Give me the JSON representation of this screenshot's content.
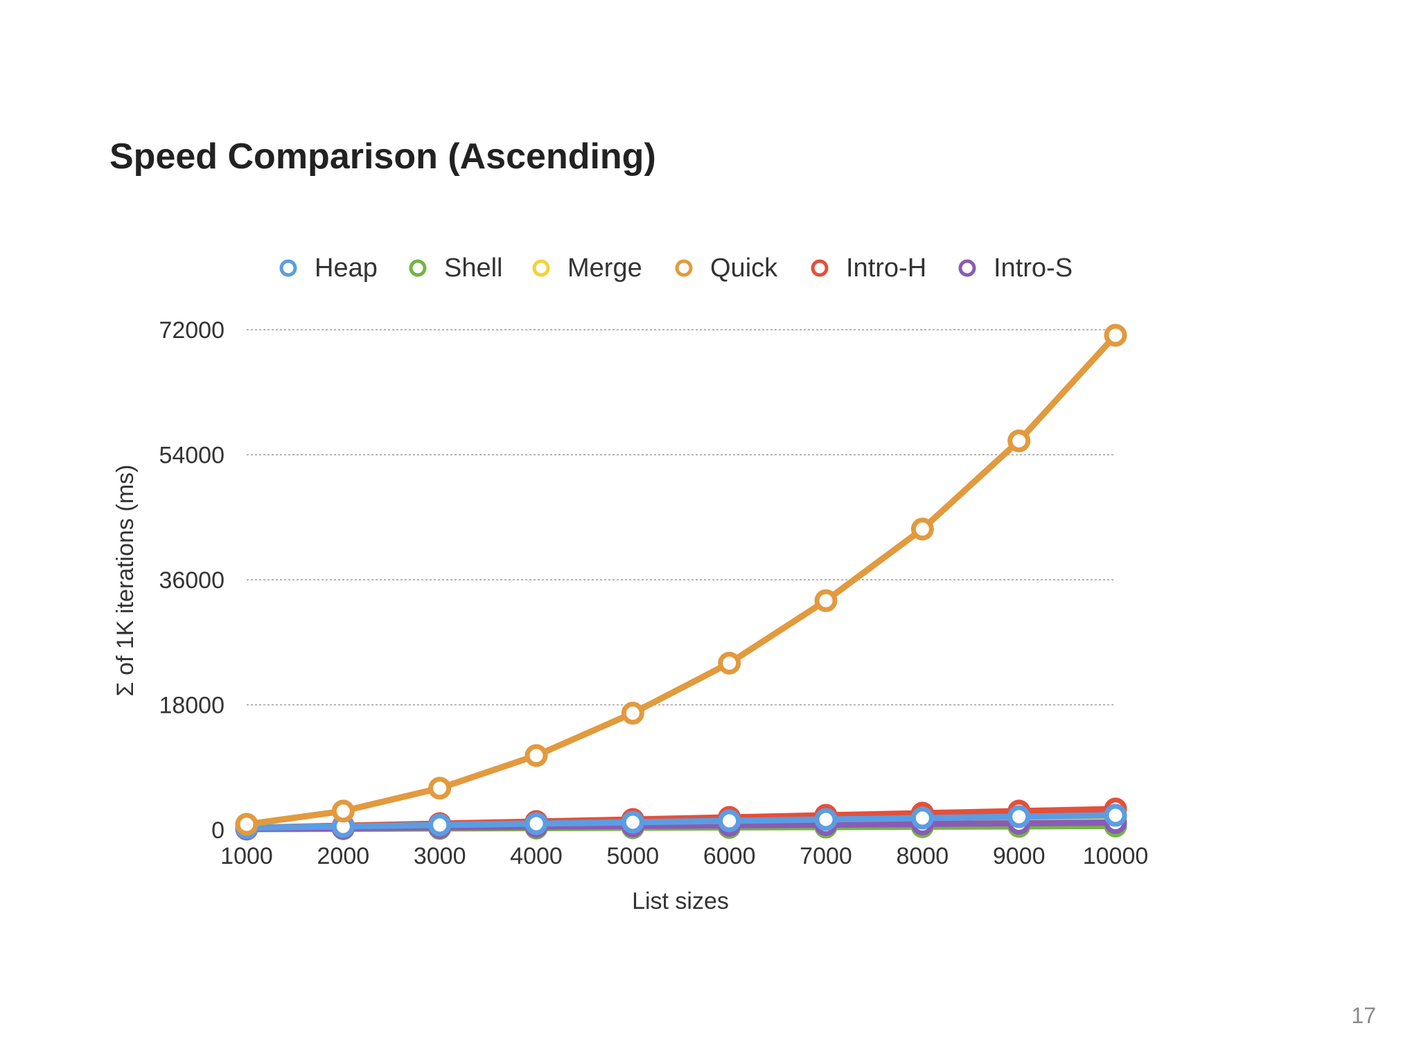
{
  "slide": {
    "title": "Speed Comparison (Ascending)",
    "page_number": "17"
  },
  "chart_data": {
    "type": "line",
    "title": "",
    "xlabel": "List sizes",
    "ylabel": "Σ of 1K iterations (ms)",
    "x": [
      1000,
      2000,
      3000,
      4000,
      5000,
      6000,
      7000,
      8000,
      9000,
      10000
    ],
    "x_tick_labels": [
      "1000",
      "2000",
      "3000",
      "4000",
      "5000",
      "6000",
      "7000",
      "8000",
      "9000",
      "10000"
    ],
    "ylim": [
      0,
      72000
    ],
    "y_ticks": [
      0,
      18000,
      36000,
      54000,
      72000
    ],
    "y_tick_labels": [
      "0",
      "18000",
      "36000",
      "54000",
      "72000"
    ],
    "grid": true,
    "legend_position": "top",
    "series": [
      {
        "name": "Heap",
        "color": "#5b9de2",
        "values": [
          300,
          500,
          700,
          900,
          1100,
          1300,
          1500,
          1700,
          1900,
          2100
        ]
      },
      {
        "name": "Shell",
        "color": "#74b544",
        "values": [
          100,
          150,
          200,
          250,
          300,
          350,
          400,
          450,
          500,
          550
        ]
      },
      {
        "name": "Merge",
        "color": "#f2d43b",
        "values": [
          150,
          250,
          350,
          450,
          550,
          700,
          850,
          1000,
          1150,
          1300
        ]
      },
      {
        "name": "Quick",
        "color": "#e29a3e",
        "values": [
          800,
          2700,
          6000,
          10700,
          16800,
          24000,
          33000,
          43300,
          56000,
          71200
        ]
      },
      {
        "name": "Intro-H",
        "color": "#e4503a",
        "values": [
          300,
          600,
          900,
          1200,
          1500,
          1800,
          2100,
          2400,
          2700,
          3000
        ]
      },
      {
        "name": "Intro-S",
        "color": "#8a5bb5",
        "values": [
          150,
          250,
          350,
          450,
          550,
          650,
          750,
          850,
          950,
          1050
        ]
      }
    ]
  }
}
